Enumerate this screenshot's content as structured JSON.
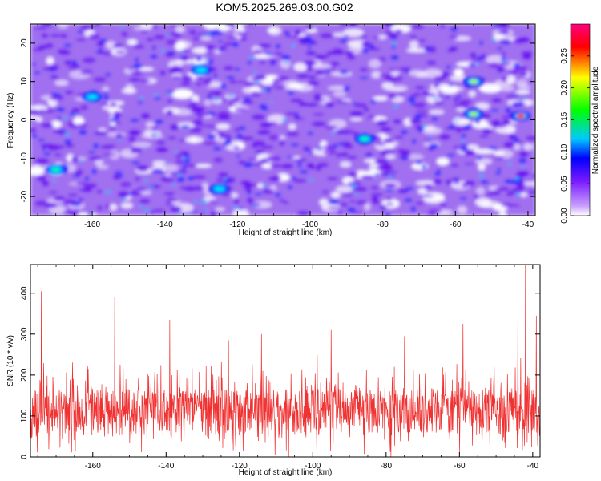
{
  "title": "KOM5.2025.269.03.00.G02",
  "chart_data": [
    {
      "type": "heatmap",
      "xlabel": "Height of straight line (km)",
      "ylabel": "Frequency (Hz)",
      "xlim": [
        -177,
        -38
      ],
      "ylim": [
        -25,
        25
      ],
      "x_ticks": [
        "-160",
        "-140",
        "-120",
        "-100",
        "-80",
        "-60",
        "-40"
      ],
      "y_ticks": [
        "20",
        "10",
        "0",
        "-10",
        "-20"
      ],
      "colorbar": {
        "label": "Normalized spectral amplitude",
        "range": [
          0,
          0.3
        ],
        "ticks": [
          "0.25",
          "0.20",
          "0.15",
          "0.10",
          "0.05",
          "0.00"
        ],
        "colors": [
          "#ffffff",
          "#7a1aff",
          "#0000ff",
          "#00c8ff",
          "#00ff00",
          "#ffff00",
          "#ff0000",
          "#ff0080"
        ]
      },
      "hotspots": [
        {
          "x": -42,
          "y": 1,
          "value": 0.28
        },
        {
          "x": -55,
          "y": 10,
          "value": 0.17
        },
        {
          "x": -55,
          "y": 1.5,
          "value": 0.16
        },
        {
          "x": -85,
          "y": -5,
          "value": 0.15
        },
        {
          "x": -170,
          "y": -13,
          "value": 0.12
        },
        {
          "x": -125,
          "y": -18,
          "value": 0.11
        },
        {
          "x": -160,
          "y": 6,
          "value": 0.1
        },
        {
          "x": -130,
          "y": 13,
          "value": 0.09
        }
      ]
    },
    {
      "type": "line",
      "xlabel": "Height of straight line (km)",
      "ylabel": "SNR (10 * v/v)",
      "xlim": [
        -177,
        -38
      ],
      "ylim": [
        0,
        470
      ],
      "x_ticks": [
        "-160",
        "-140",
        "-120",
        "-100",
        "-80",
        "-60",
        "-40"
      ],
      "y_ticks": [
        "400",
        "300",
        "200",
        "100",
        "0"
      ],
      "color": "#f03232",
      "baseline": 110,
      "peaks": [
        {
          "x": -174,
          "y": 405
        },
        {
          "x": -154,
          "y": 390
        },
        {
          "x": -139,
          "y": 335
        },
        {
          "x": -123,
          "y": 285
        },
        {
          "x": -114,
          "y": 300
        },
        {
          "x": -95,
          "y": 310
        },
        {
          "x": -75,
          "y": 295
        },
        {
          "x": -59,
          "y": 325
        },
        {
          "x": -44,
          "y": 395
        },
        {
          "x": -42,
          "y": 470
        },
        {
          "x": -39,
          "y": 345
        }
      ]
    }
  ]
}
